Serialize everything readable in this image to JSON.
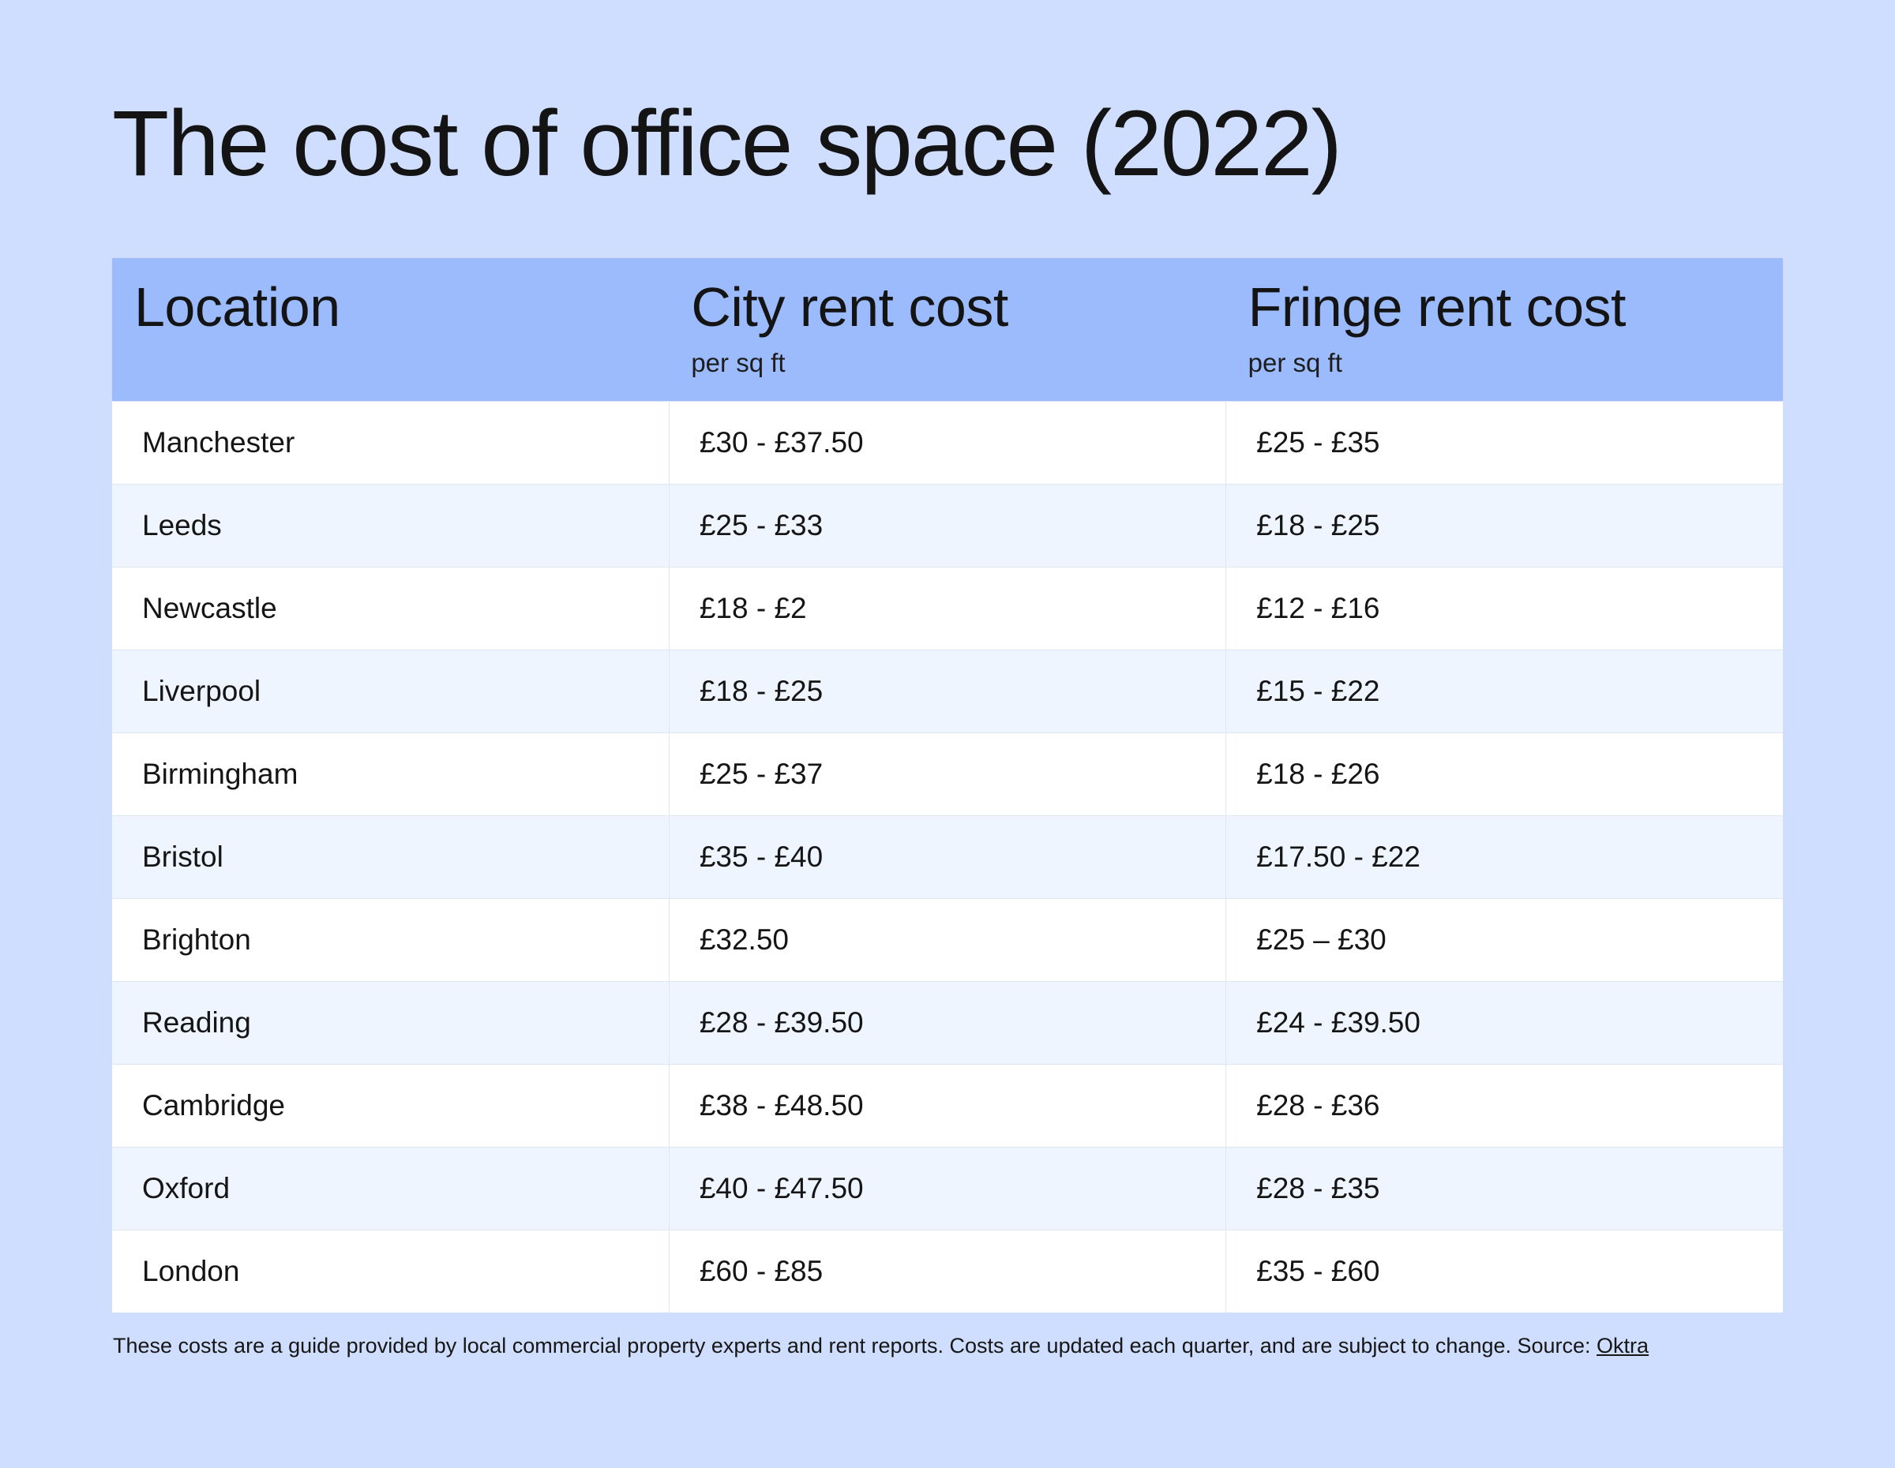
{
  "title": "The cost of office space (2022)",
  "table": {
    "columns": [
      {
        "label": "Location",
        "sub": ""
      },
      {
        "label": "City rent cost",
        "sub": "per sq ft"
      },
      {
        "label": "Fringe rent cost",
        "sub": "per sq ft"
      }
    ],
    "rows": [
      {
        "location": "Manchester",
        "city": "£30 -  £37.50",
        "fringe": "£25 - £35"
      },
      {
        "location": "Leeds",
        "city": "£25 - £33",
        "fringe": "£18 - £25"
      },
      {
        "location": "Newcastle",
        "city": "£18 - £2",
        "fringe": "£12 - £16"
      },
      {
        "location": "Liverpool",
        "city": "£18 - £25",
        "fringe": "£15 - £22"
      },
      {
        "location": "Birmingham",
        "city": "£25 - £37",
        "fringe": "£18 - £26"
      },
      {
        "location": "Bristol",
        "city": "£35 - £40",
        "fringe": "£17.50 - £22"
      },
      {
        "location": "Brighton",
        "city": "£32.50",
        "fringe": "£25 – £30"
      },
      {
        "location": "Reading",
        "city": "£28 - £39.50",
        "fringe": "£24 - £39.50"
      },
      {
        "location": "Cambridge",
        "city": "£38 - £48.50",
        "fringe": "£28 - £36"
      },
      {
        "location": "Oxford",
        "city": "£40 - £47.50",
        "fringe": "£28 - £35"
      },
      {
        "location": "London",
        "city": "£60 - £85",
        "fringe": "£35 - £60"
      }
    ]
  },
  "footnote": {
    "text": "These costs are a guide provided by local commercial property experts and rent reports. Costs are updated each quarter, and are subject to change. Source: ",
    "link_label": "Oktra"
  },
  "colors": {
    "background": "#cfdefe",
    "header": "#9cbbfd",
    "row_odd": "#ffffff",
    "row_even": "#eff5ff"
  }
}
